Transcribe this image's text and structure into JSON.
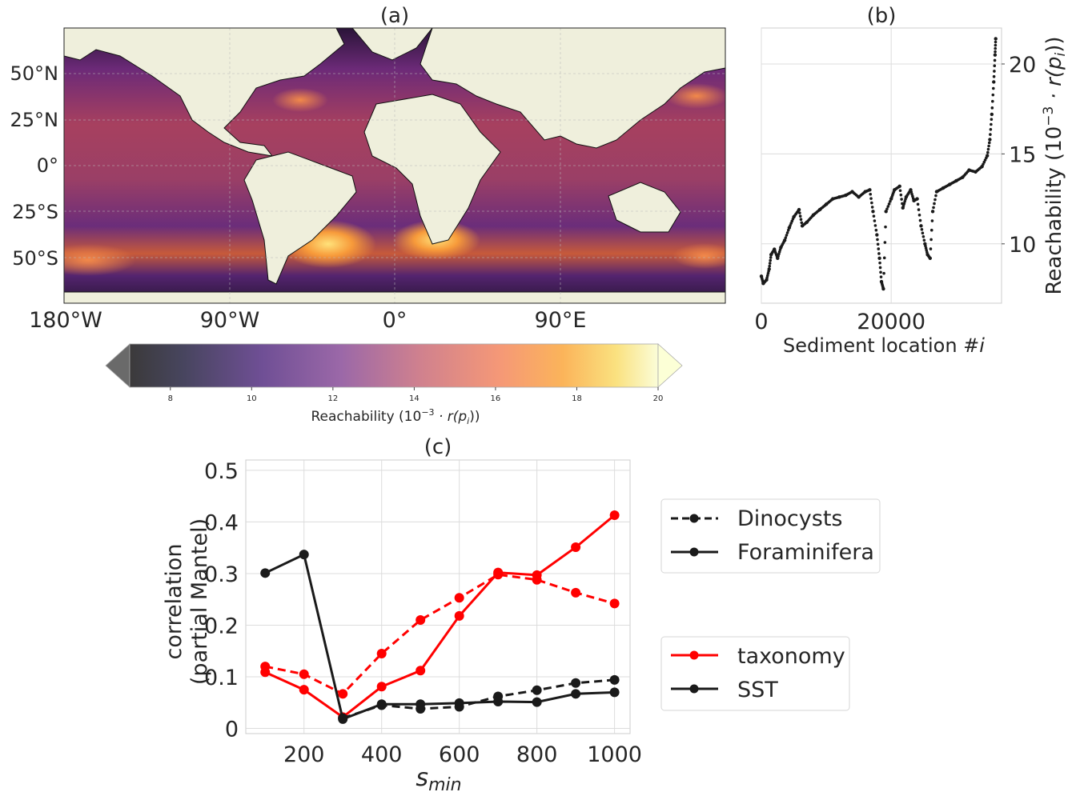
{
  "panels": {
    "a": {
      "title": "(a)",
      "lat_ticks": [
        "50°N",
        "25°N",
        "0°",
        "25°S",
        "50°S"
      ],
      "lon_ticks": [
        "180°W",
        "90°W",
        "0°",
        "90°E"
      ],
      "colorbar": {
        "label_main": "Reachability (10",
        "label_exp": "−3",
        "label_tail": " · r(p",
        "label_sub": "i",
        "label_end": "))",
        "ticks": [
          "8",
          "10",
          "12",
          "14",
          "16",
          "18",
          "20"
        ]
      }
    },
    "b": {
      "title": "(b)",
      "xlabel_main": "Sediment location #",
      "xlabel_var": "i",
      "ylabel_main": "Reachability (10",
      "ylabel_exp": "−3",
      "ylabel_tail": " · r(p",
      "ylabel_sub": "i",
      "ylabel_end": "))",
      "xticks": [
        "0",
        "20000"
      ],
      "yticks": [
        "10",
        "15",
        "20"
      ]
    },
    "c": {
      "title": "(c)",
      "ylabel_line1": "correlation",
      "ylabel_line2": "(partial Mantel)",
      "xlabel_main": "s",
      "xlabel_sub": "min",
      "legend1": {
        "dashed": "Dinocysts",
        "solid": "Foraminifera"
      },
      "legend2": {
        "red": "taxonomy",
        "black": "SST"
      }
    }
  },
  "chart_data": [
    {
      "type": "heatmap",
      "panel": "a",
      "colorbar_range": [
        7,
        20
      ],
      "colormap": "inferno-like",
      "colorbar_extend": "both",
      "ocean_color": "#6a2a73",
      "land_color": "#efefdc"
    },
    {
      "type": "scatter",
      "panel": "b",
      "x_range": [
        0,
        37000
      ],
      "y_range": [
        6.7,
        22
      ],
      "grid": true,
      "points": [
        [
          0,
          8.2
        ],
        [
          300,
          7.8
        ],
        [
          800,
          8.0
        ],
        [
          1200,
          8.6
        ],
        [
          1500,
          9.4
        ],
        [
          2000,
          9.7
        ],
        [
          2500,
          9.2
        ],
        [
          3000,
          9.8
        ],
        [
          3600,
          10.2
        ],
        [
          4300,
          10.9
        ],
        [
          5000,
          11.5
        ],
        [
          5800,
          11.9
        ],
        [
          6300,
          11.0
        ],
        [
          7000,
          11.2
        ],
        [
          8000,
          11.6
        ],
        [
          9000,
          11.9
        ],
        [
          10000,
          12.2
        ],
        [
          11000,
          12.5
        ],
        [
          12000,
          12.6
        ],
        [
          13000,
          12.7
        ],
        [
          14000,
          12.9
        ],
        [
          15000,
          12.6
        ],
        [
          16000,
          12.9
        ],
        [
          16700,
          13.0
        ],
        [
          17200,
          11.8
        ],
        [
          17800,
          10.5
        ],
        [
          18200,
          9.2
        ],
        [
          18500,
          7.9
        ],
        [
          18800,
          7.5
        ],
        [
          19200,
          11.8
        ],
        [
          20000,
          12.5
        ],
        [
          20500,
          13.0
        ],
        [
          21300,
          13.2
        ],
        [
          21800,
          12.0
        ],
        [
          22300,
          12.6
        ],
        [
          23000,
          13.0
        ],
        [
          23500,
          12.4
        ],
        [
          24000,
          12.5
        ],
        [
          24600,
          11.0
        ],
        [
          25200,
          10.0
        ],
        [
          25600,
          9.4
        ],
        [
          26000,
          9.2
        ],
        [
          26400,
          11.8
        ],
        [
          27000,
          12.9
        ],
        [
          28000,
          13.1
        ],
        [
          29000,
          13.3
        ],
        [
          30000,
          13.5
        ],
        [
          31000,
          13.7
        ],
        [
          32000,
          14.1
        ],
        [
          33000,
          14.0
        ],
        [
          34000,
          14.3
        ],
        [
          34800,
          14.9
        ],
        [
          35200,
          15.8
        ],
        [
          35500,
          17.2
        ],
        [
          35800,
          19.0
        ],
        [
          36000,
          20.5
        ],
        [
          36100,
          21.4
        ]
      ]
    },
    {
      "type": "line",
      "panel": "c",
      "x": [
        100,
        200,
        300,
        400,
        500,
        600,
        700,
        800,
        900,
        1000
      ],
      "xticks": [
        200,
        400,
        600,
        800,
        1000
      ],
      "yticks": [
        0,
        0.1,
        0.2,
        0.3,
        0.4,
        0.5
      ],
      "xlim": [
        50,
        1040
      ],
      "ylim": [
        -0.01,
        0.52
      ],
      "grid": true,
      "series": [
        {
          "name": "Dinocysts taxonomy",
          "color": "#ff0000",
          "dashed": true,
          "values": [
            0.12,
            0.105,
            0.067,
            0.145,
            0.21,
            0.253,
            0.298,
            0.288,
            0.263,
            0.242
          ]
        },
        {
          "name": "Foraminifera taxonomy",
          "color": "#ff0000",
          "dashed": false,
          "values": [
            0.109,
            0.075,
            0.022,
            0.081,
            0.112,
            0.218,
            0.302,
            0.297,
            0.351,
            0.413
          ]
        },
        {
          "name": "Dinocysts SST",
          "color": "#1a1a1a",
          "dashed": true,
          "values": [
            null,
            null,
            0.02,
            0.045,
            0.038,
            0.042,
            0.062,
            0.074,
            0.088,
            0.094
          ]
        },
        {
          "name": "Foraminifera SST",
          "color": "#1a1a1a",
          "dashed": false,
          "values": [
            0.301,
            0.337,
            0.018,
            0.047,
            0.047,
            0.049,
            0.052,
            0.051,
            0.067,
            0.07
          ]
        }
      ]
    }
  ]
}
